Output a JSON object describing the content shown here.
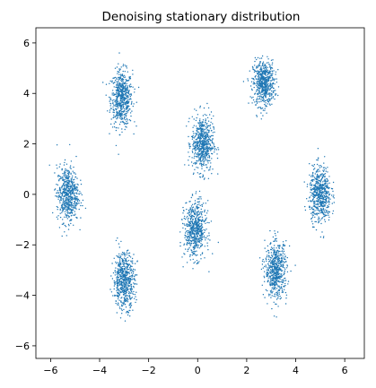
{
  "chart_data": {
    "type": "scatter",
    "title": "Denoising stationary distribution",
    "xlabel": "",
    "ylabel": "",
    "xlim": [
      -6.6,
      6.8
    ],
    "ylim": [
      -6.5,
      6.6
    ],
    "xticks": [
      -6,
      -4,
      -2,
      0,
      2,
      4,
      6
    ],
    "yticks": [
      -6,
      -4,
      -2,
      0,
      2,
      4,
      6
    ],
    "grid": false,
    "point_color": "#1f77b4",
    "clusters": [
      {
        "center": [
          -3.1,
          3.8
        ],
        "spread": [
          0.22,
          0.55
        ],
        "count": 600
      },
      {
        "center": [
          2.7,
          4.4
        ],
        "spread": [
          0.22,
          0.45
        ],
        "count": 600
      },
      {
        "center": [
          0.2,
          2.0
        ],
        "spread": [
          0.22,
          0.55
        ],
        "count": 600
      },
      {
        "center": [
          -5.3,
          0.0
        ],
        "spread": [
          0.22,
          0.55
        ],
        "count": 600
      },
      {
        "center": [
          5.0,
          0.0
        ],
        "spread": [
          0.22,
          0.55
        ],
        "count": 600
      },
      {
        "center": [
          -0.1,
          -1.4
        ],
        "spread": [
          0.22,
          0.55
        ],
        "count": 600
      },
      {
        "center": [
          -3.0,
          -3.4
        ],
        "spread": [
          0.22,
          0.55
        ],
        "count": 600
      },
      {
        "center": [
          3.2,
          -3.0
        ],
        "spread": [
          0.22,
          0.55
        ],
        "count": 600
      }
    ]
  }
}
